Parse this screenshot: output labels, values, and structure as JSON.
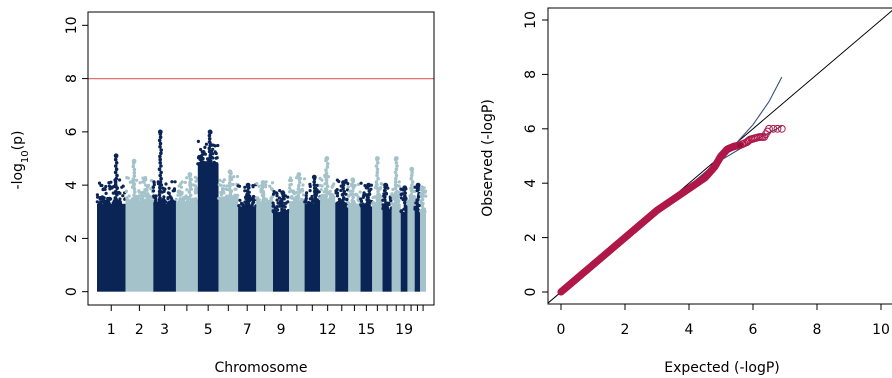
{
  "colors": {
    "odd_chromosome": "#0b2456",
    "even_chromosome": "#a3c2c9",
    "threshold": "#e07474",
    "qq_points": "#b0194a",
    "qq_points_fill": "#7a0f2e",
    "qq_curve": "#3a4f80",
    "qq_diagonal": "#000000",
    "frame": "#000000"
  },
  "chart_data": [
    {
      "type": "scatter",
      "subtype": "manhattan",
      "xlabel": "Chromosome",
      "ylabel_main": "-log",
      "ylabel_sub": "10",
      "ylabel_tail": "(p)",
      "ylim": [
        -0.5,
        10.5
      ],
      "y_ticks": [
        0,
        2,
        4,
        6,
        8,
        10
      ],
      "grid": false,
      "threshold": 8,
      "x_tick_labels": [
        "1",
        "2",
        "3",
        "5",
        "7",
        "9",
        "12",
        "15",
        "19"
      ],
      "x_tick_chromosomes": [
        1,
        2,
        3,
        5,
        7,
        9,
        12,
        15,
        19
      ],
      "chromosomes": [
        {
          "chr": 1,
          "length": 249,
          "peak": 5.1,
          "typical_max": 3.9
        },
        {
          "chr": 2,
          "length": 243,
          "peak": 4.9,
          "typical_max": 4.0
        },
        {
          "chr": 3,
          "length": 198,
          "peak": 6.0,
          "typical_max": 3.9
        },
        {
          "chr": 4,
          "length": 191,
          "peak": 4.4,
          "typical_max": 4.0
        },
        {
          "chr": 5,
          "length": 181,
          "peak": 6.0,
          "typical_max": 5.4
        },
        {
          "chr": 6,
          "length": 171,
          "peak": 4.5,
          "typical_max": 4.1
        },
        {
          "chr": 7,
          "length": 159,
          "peak": 4.0,
          "typical_max": 3.8
        },
        {
          "chr": 8,
          "length": 146,
          "peak": 4.1,
          "typical_max": 3.9
        },
        {
          "chr": 9,
          "length": 141,
          "peak": 3.7,
          "typical_max": 3.6
        },
        {
          "chr": 10,
          "length": 135,
          "peak": 4.4,
          "typical_max": 4.0
        },
        {
          "chr": 11,
          "length": 135,
          "peak": 4.3,
          "typical_max": 3.9
        },
        {
          "chr": 12,
          "length": 133,
          "peak": 5.0,
          "typical_max": 4.1
        },
        {
          "chr": 13,
          "length": 114,
          "peak": 4.1,
          "typical_max": 3.9
        },
        {
          "chr": 14,
          "length": 107,
          "peak": 4.2,
          "typical_max": 3.8
        },
        {
          "chr": 15,
          "length": 102,
          "peak": 4.0,
          "typical_max": 3.8
        },
        {
          "chr": 16,
          "length": 90,
          "peak": 5.0,
          "typical_max": 3.9
        },
        {
          "chr": 17,
          "length": 81,
          "peak": 4.0,
          "typical_max": 3.7
        },
        {
          "chr": 18,
          "length": 78,
          "peak": 5.0,
          "typical_max": 3.9
        },
        {
          "chr": 19,
          "length": 59,
          "peak": 3.9,
          "typical_max": 3.6
        },
        {
          "chr": 20,
          "length": 63,
          "peak": 4.6,
          "typical_max": 3.9
        },
        {
          "chr": 21,
          "length": 48,
          "peak": 4.0,
          "typical_max": 3.7
        },
        {
          "chr": 22,
          "length": 51,
          "peak": 3.9,
          "typical_max": 3.6
        }
      ]
    },
    {
      "type": "scatter",
      "subtype": "qq",
      "xlabel": "Expected (-logP)",
      "ylabel": "Observed (-logP)",
      "xlim": [
        -0.4,
        10.4
      ],
      "ylim": [
        -0.4,
        10.4
      ],
      "x_ticks": [
        0,
        2,
        4,
        6,
        8,
        10
      ],
      "y_ticks": [
        0,
        2,
        4,
        6,
        8,
        10
      ],
      "grid": false,
      "points": [
        [
          0.0,
          0.0
        ],
        [
          0.5,
          0.5
        ],
        [
          1.0,
          1.0
        ],
        [
          1.5,
          1.5
        ],
        [
          2.0,
          2.0
        ],
        [
          2.5,
          2.5
        ],
        [
          3.0,
          3.0
        ],
        [
          3.5,
          3.4
        ],
        [
          4.0,
          3.8
        ],
        [
          4.5,
          4.2
        ],
        [
          4.8,
          4.6
        ],
        [
          5.0,
          5.0
        ],
        [
          5.2,
          5.25
        ],
        [
          5.4,
          5.35
        ],
        [
          5.6,
          5.4
        ],
        [
          5.8,
          5.5
        ],
        [
          5.9,
          5.6
        ],
        [
          6.05,
          5.65
        ],
        [
          6.2,
          5.7
        ],
        [
          6.35,
          5.7
        ],
        [
          6.5,
          6.0
        ],
        [
          6.9,
          6.0
        ]
      ],
      "upper_curve": [
        [
          0,
          0
        ],
        [
          2,
          2
        ],
        [
          4,
          3.9
        ],
        [
          5.0,
          4.9
        ],
        [
          5.5,
          5.5
        ],
        [
          6.0,
          6.15
        ],
        [
          6.5,
          7.0
        ],
        [
          6.9,
          7.9
        ]
      ],
      "lower_curve": [
        [
          0,
          0
        ],
        [
          2,
          2
        ],
        [
          4,
          3.9
        ],
        [
          5.0,
          4.85
        ],
        [
          5.5,
          5.2
        ],
        [
          6.0,
          5.55
        ],
        [
          6.5,
          5.85
        ],
        [
          6.9,
          6.1
        ]
      ],
      "diagonal": [
        [
          -0.5,
          -0.5
        ],
        [
          10.5,
          10.5
        ]
      ]
    }
  ]
}
